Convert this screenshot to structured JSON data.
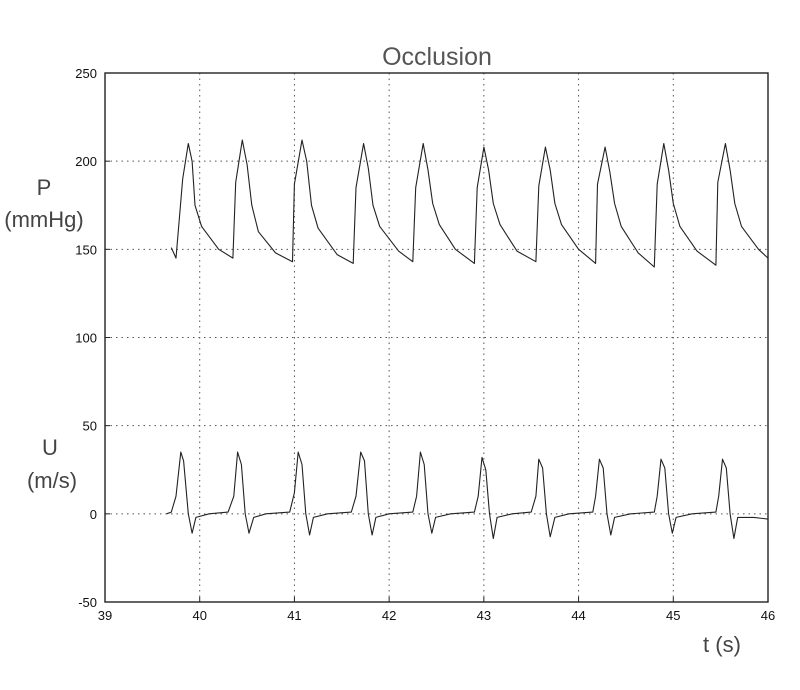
{
  "chart_data": {
    "type": "line",
    "title": "Occlusion",
    "xlabel": "t (s)",
    "xlim": [
      39,
      46
    ],
    "ylim": [
      -50,
      250
    ],
    "xticks": [
      "39",
      "40",
      "41",
      "42",
      "43",
      "44",
      "45",
      "46"
    ],
    "yticks": [
      "-50",
      "0",
      "50",
      "100",
      "150",
      "200",
      "250"
    ],
    "grid": true,
    "series_labels": [
      {
        "name": "P",
        "unit": "(mmHg)"
      },
      {
        "name": "U",
        "unit": "(m/s)"
      }
    ],
    "series": [
      {
        "name": "P",
        "x": [
          39.7,
          39.75,
          39.82,
          39.88,
          39.92,
          39.95,
          40.02,
          40.2,
          40.35,
          40.38,
          40.45,
          40.5,
          40.55,
          40.62,
          40.8,
          40.98,
          41.0,
          41.08,
          41.13,
          41.18,
          41.25,
          41.45,
          41.62,
          41.65,
          41.73,
          41.78,
          41.83,
          41.9,
          42.1,
          42.25,
          42.28,
          42.36,
          42.41,
          42.46,
          42.53,
          42.7,
          42.9,
          42.93,
          43.0,
          43.05,
          43.1,
          43.17,
          43.35,
          43.55,
          43.58,
          43.65,
          43.7,
          43.75,
          43.82,
          44.0,
          44.18,
          44.2,
          44.28,
          44.33,
          44.38,
          44.45,
          44.63,
          44.8,
          44.83,
          44.9,
          44.95,
          45.0,
          45.07,
          45.25,
          45.45,
          45.47,
          45.55,
          45.6,
          45.65,
          45.72,
          45.9,
          46.0
        ],
        "y": [
          151,
          145,
          190,
          210,
          200,
          175,
          163,
          150,
          145,
          188,
          212,
          198,
          175,
          160,
          148,
          143,
          187,
          212,
          200,
          175,
          162,
          147,
          142,
          185,
          210,
          196,
          175,
          163,
          149,
          143,
          185,
          210,
          195,
          176,
          164,
          150,
          142,
          185,
          208,
          195,
          176,
          164,
          149,
          143,
          186,
          208,
          195,
          176,
          164,
          150,
          142,
          187,
          208,
          194,
          176,
          163,
          148,
          140,
          187,
          210,
          195,
          176,
          163,
          149,
          141,
          188,
          210,
          195,
          176,
          163,
          150,
          145
        ]
      },
      {
        "name": "U",
        "x": [
          39.65,
          39.7,
          39.75,
          39.8,
          39.83,
          39.88,
          39.92,
          39.96,
          40.1,
          40.3,
          40.36,
          40.4,
          40.44,
          40.48,
          40.52,
          40.57,
          40.7,
          40.95,
          41.0,
          41.04,
          41.08,
          41.12,
          41.16,
          41.2,
          41.35,
          41.6,
          41.65,
          41.7,
          41.74,
          41.78,
          41.82,
          41.86,
          42.0,
          42.25,
          42.29,
          42.33,
          42.37,
          42.41,
          42.45,
          42.49,
          42.65,
          42.9,
          42.94,
          42.98,
          43.02,
          43.06,
          43.1,
          43.14,
          43.3,
          43.5,
          43.55,
          43.58,
          43.62,
          43.66,
          43.7,
          43.75,
          43.9,
          44.15,
          44.18,
          44.22,
          44.26,
          44.3,
          44.34,
          44.38,
          44.55,
          44.8,
          44.83,
          44.87,
          44.91,
          44.95,
          44.99,
          45.03,
          45.2,
          45.45,
          45.48,
          45.52,
          45.56,
          45.6,
          45.64,
          45.68,
          45.85,
          46.0
        ],
        "y": [
          0,
          1,
          10,
          35,
          30,
          0,
          -11,
          -2,
          0,
          1,
          10,
          35,
          28,
          0,
          -11,
          -2,
          0,
          1,
          12,
          35,
          28,
          0,
          -12,
          -2,
          0,
          1,
          10,
          35,
          30,
          0,
          -12,
          -2,
          0,
          1,
          10,
          35,
          28,
          0,
          -11,
          -2,
          0,
          1,
          10,
          32,
          25,
          0,
          -14,
          -2,
          0,
          1,
          10,
          31,
          26,
          0,
          -13,
          -2,
          0,
          1,
          10,
          31,
          26,
          0,
          -12,
          -2,
          0,
          1,
          10,
          31,
          26,
          0,
          -11,
          -2,
          0,
          1,
          10,
          31,
          26,
          0,
          -14,
          -2,
          -2,
          -3
        ]
      }
    ]
  }
}
